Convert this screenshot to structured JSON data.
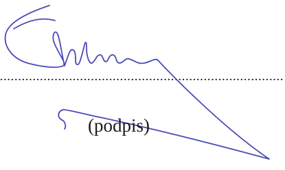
{
  "signature_block": {
    "label": "(podpis)"
  }
}
